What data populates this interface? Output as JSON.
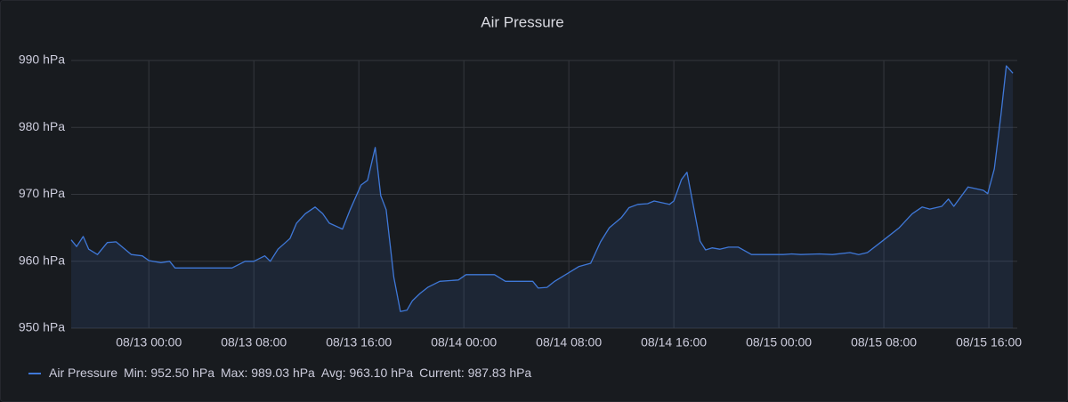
{
  "chart_data": {
    "type": "line",
    "title": "Air Pressure",
    "x": [
      "08/12 18:05",
      "08/12 18:30",
      "08/12 19:00",
      "08/12 19:25",
      "08/12 20:05",
      "08/12 20:50",
      "08/12 21:30",
      "08/12 22:40",
      "08/12 23:30",
      "08/13 00:00",
      "08/13 00:55",
      "08/13 01:35",
      "08/13 02:00",
      "08/13 06:20",
      "08/13 07:20",
      "08/13 08:00",
      "08/13 08:50",
      "08/13 09:15",
      "08/13 09:50",
      "08/13 10:45",
      "08/13 11:15",
      "08/13 11:55",
      "08/13 12:40",
      "08/13 13:15",
      "08/13 13:45",
      "08/13 14:45",
      "08/13 15:20",
      "08/13 16:10",
      "08/13 16:40",
      "08/13 17:15",
      "08/13 17:40",
      "08/13 18:05",
      "08/13 18:40",
      "08/13 19:10",
      "08/13 19:40",
      "08/13 20:05",
      "08/13 20:40",
      "08/13 21:15",
      "08/13 22:10",
      "08/13 23:35",
      "08/14 00:10",
      "08/14 02:20",
      "08/14 03:10",
      "08/14 05:15",
      "08/14 05:40",
      "08/14 06:20",
      "08/14 06:55",
      "08/14 08:45",
      "08/14 09:40",
      "08/14 10:25",
      "08/14 11:05",
      "08/14 12:00",
      "08/14 12:35",
      "08/14 13:15",
      "08/14 14:00",
      "08/14 14:30",
      "08/14 15:40",
      "08/14 16:00",
      "08/14 16:35",
      "08/14 17:00",
      "08/14 18:00",
      "08/14 18:25",
      "08/14 18:55",
      "08/14 19:30",
      "08/14 20:10",
      "08/14 20:55",
      "08/14 21:55",
      "08/15 00:20",
      "08/15 01:00",
      "08/15 01:40",
      "08/15 03:05",
      "08/15 04:05",
      "08/15 05:25",
      "08/15 06:05",
      "08/15 06:45",
      "08/15 08:00",
      "08/15 09:10",
      "08/15 10:10",
      "08/15 10:55",
      "08/15 11:30",
      "08/15 12:25",
      "08/15 12:55",
      "08/15 13:20",
      "08/15 14:25",
      "08/15 15:35",
      "08/15 15:55",
      "08/15 16:25",
      "08/15 16:55",
      "08/15 17:20",
      "08/15 17:50"
    ],
    "series": [
      {
        "name": "Air Pressure",
        "color": "#3f78d8",
        "values": [
          963.2,
          962.2,
          963.7,
          961.8,
          961.0,
          962.8,
          962.9,
          961.0,
          960.8,
          960.1,
          959.8,
          960.0,
          959.0,
          959.0,
          960.0,
          960.0,
          960.8,
          960.0,
          961.8,
          963.4,
          965.7,
          967.1,
          968.1,
          967.1,
          965.7,
          964.8,
          967.7,
          971.4,
          972.1,
          977.0,
          969.8,
          967.7,
          957.6,
          952.5,
          952.7,
          954.1,
          955.2,
          956.1,
          957.0,
          957.2,
          958.0,
          958.0,
          957.0,
          957.0,
          956.0,
          956.1,
          957.0,
          959.2,
          959.7,
          962.9,
          965.0,
          966.5,
          968.0,
          968.5,
          968.6,
          969.0,
          968.5,
          969.0,
          972.2,
          973.3,
          963.0,
          961.7,
          962.0,
          961.8,
          962.1,
          962.1,
          961.0,
          961.0,
          961.1,
          961.0,
          961.1,
          961.0,
          961.3,
          961.0,
          961.3,
          963.2,
          965.0,
          967.1,
          968.1,
          967.8,
          968.2,
          969.3,
          968.2,
          971.1,
          970.6,
          970.1,
          973.8,
          981.8,
          989.2,
          988.1
        ],
        "stats": [
          "Min: 952.50 hPa",
          "Max: 989.03 hPa",
          "Avg: 963.10 hPa",
          "Current: 987.83 hPa"
        ]
      }
    ],
    "xlim": [
      "08/12 18:05",
      "08/15 18:10"
    ],
    "xticks": [
      "08/13 00:00",
      "08/13 08:00",
      "08/13 16:00",
      "08/14 00:00",
      "08/14 08:00",
      "08/14 16:00",
      "08/15 00:00",
      "08/15 08:00",
      "08/15 16:00"
    ],
    "ylim": [
      950,
      990
    ],
    "yticks": [
      {
        "value": 950,
        "label": "950 hPa"
      },
      {
        "value": 960,
        "label": "960 hPa"
      },
      {
        "value": 970,
        "label": "970 hPa"
      },
      {
        "value": 980,
        "label": "980 hPa"
      },
      {
        "value": 990,
        "label": "990 hPa"
      }
    ],
    "grid": true,
    "fill": true,
    "legend": "bottom"
  }
}
